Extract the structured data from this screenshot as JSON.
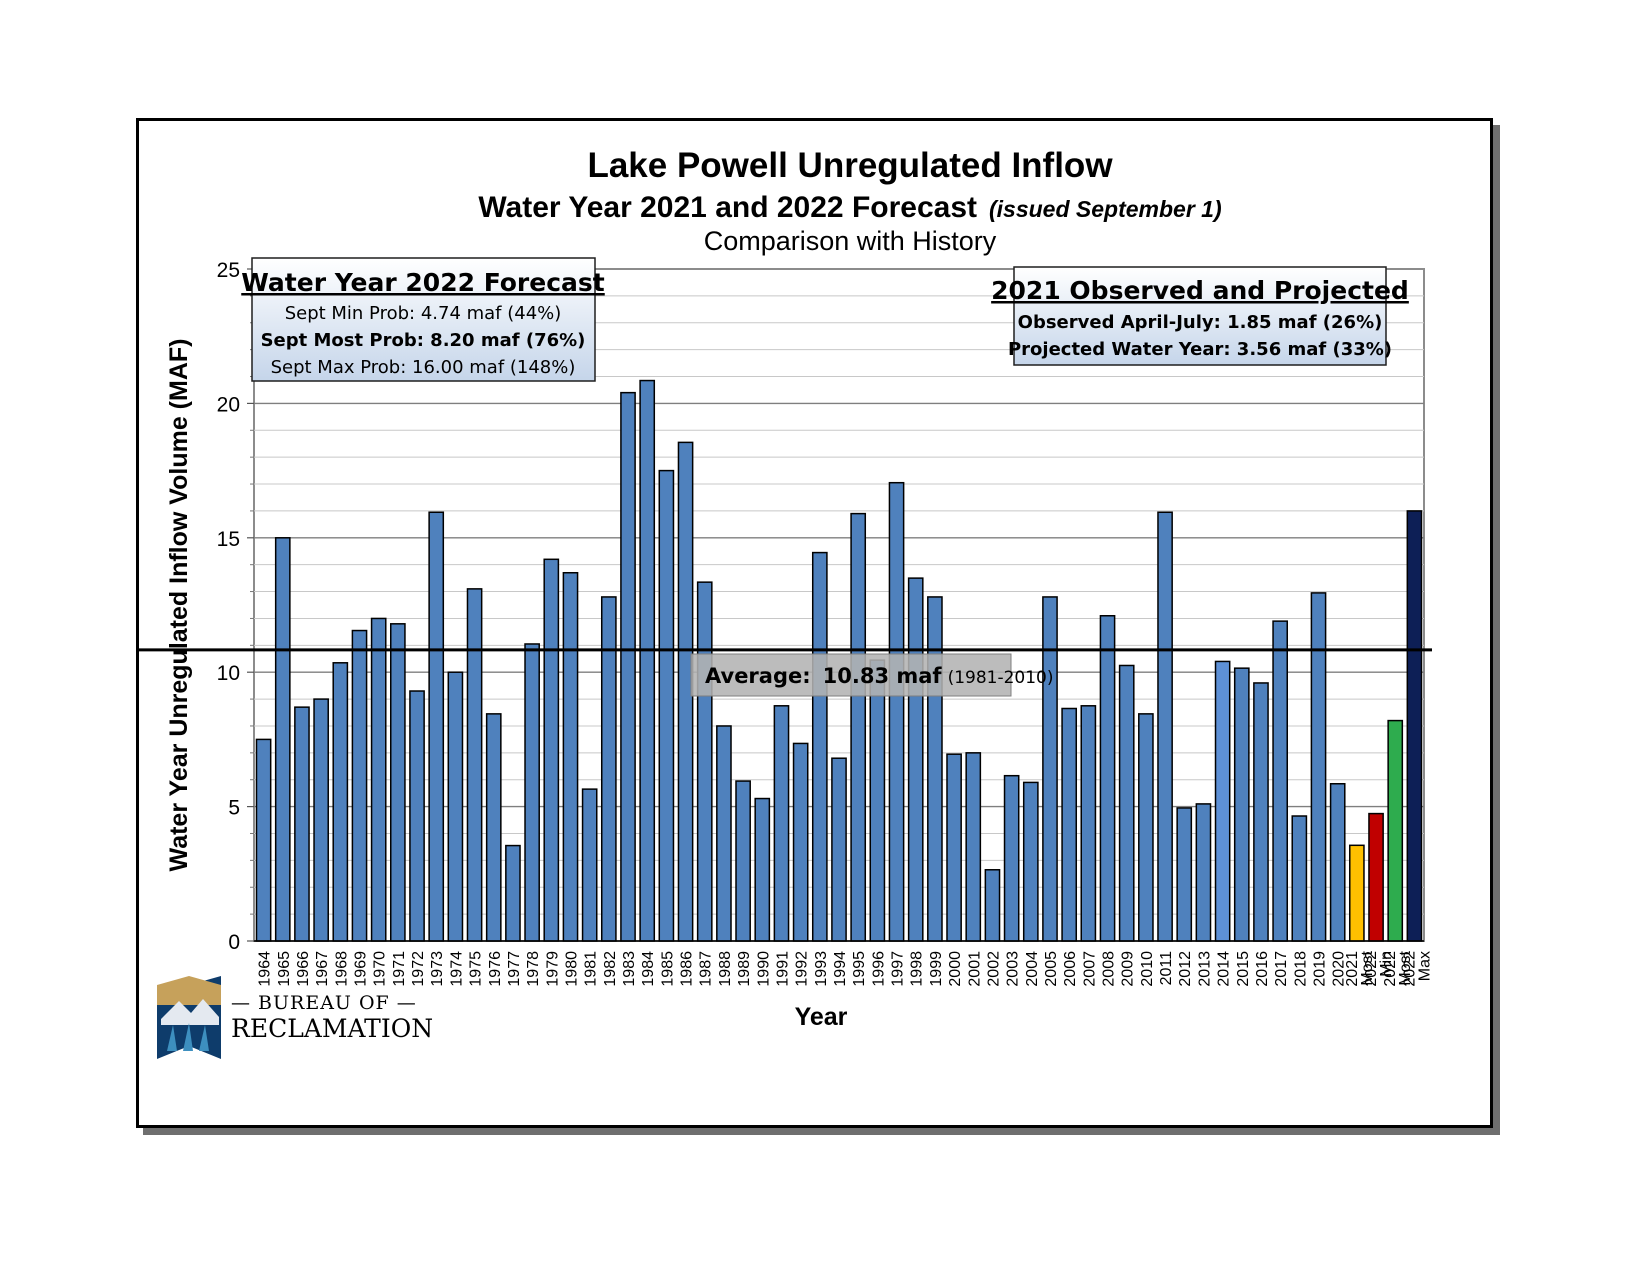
{
  "chart_data": {
    "type": "bar",
    "title": "Lake Powell Unregulated Inflow",
    "subtitle": "Water Year 2021 and 2022 Forecast",
    "subtitle_note": "(issued September 1)",
    "subtitle2": "Comparison with History",
    "xlabel": "Year",
    "ylabel": "Water Year Unregulated Inflow Volume (MAF)",
    "ylim": [
      0,
      25
    ],
    "yticks": [
      0,
      5,
      10,
      15,
      20,
      25
    ],
    "grid": true,
    "categories": [
      "1964",
      "1965",
      "1966",
      "1967",
      "1968",
      "1969",
      "1970",
      "1971",
      "1972",
      "1973",
      "1974",
      "1975",
      "1976",
      "1977",
      "1978",
      "1979",
      "1980",
      "1981",
      "1982",
      "1983",
      "1984",
      "1985",
      "1986",
      "1987",
      "1988",
      "1989",
      "1990",
      "1991",
      "1992",
      "1993",
      "1994",
      "1995",
      "1996",
      "1997",
      "1998",
      "1999",
      "2000",
      "2001",
      "2002",
      "2003",
      "2004",
      "2005",
      "2006",
      "2007",
      "2008",
      "2009",
      "2010",
      "2011",
      "2012",
      "2013",
      "2014",
      "2015",
      "2016",
      "2017",
      "2018",
      "2019",
      "2020",
      "Most 2021",
      "Min 2022",
      "Most 2022",
      "Max 2022"
    ],
    "values": [
      7.5,
      15.0,
      8.7,
      9.0,
      10.35,
      11.55,
      12.0,
      11.8,
      9.3,
      15.95,
      10.0,
      13.1,
      8.45,
      3.55,
      11.05,
      14.2,
      13.7,
      5.65,
      12.8,
      20.4,
      20.85,
      17.5,
      18.55,
      13.35,
      8.0,
      5.95,
      5.3,
      8.75,
      7.35,
      14.45,
      6.8,
      15.9,
      10.45,
      17.05,
      13.5,
      12.8,
      6.95,
      7.0,
      2.65,
      6.15,
      5.9,
      12.8,
      8.65,
      8.75,
      12.1,
      10.25,
      8.45,
      15.95,
      4.95,
      5.1,
      10.4,
      10.15,
      9.6,
      11.9,
      4.65,
      12.95,
      5.85,
      3.56,
      4.74,
      8.2,
      16.0
    ],
    "bar_colors": {
      "default": "#4f81bd",
      "2014": "#5d90d6",
      "Most 2021": "#ffc000",
      "Min 2022": "#c00000",
      "Most 2022": "#2eac4e",
      "Max 2022": "#0d1f56"
    },
    "average": {
      "value": 10.83,
      "label": "Average:",
      "value_label": "10.83 maf",
      "period": "(1981-2010)"
    },
    "forecast_box": {
      "heading": "Water Year 2022 Forecast",
      "lines": [
        "Sept Min Prob: 4.74 maf (44%)",
        "Sept Most Prob: 8.20 maf (76%)",
        "Sept Max Prob: 16.00 maf (148%)"
      ]
    },
    "observed_box": {
      "heading": "2021 Observed and Projected",
      "lines": [
        "Observed April-July: 1.85 maf (26%)",
        "Projected Water Year: 3.56 maf (33%)"
      ]
    }
  },
  "logo": {
    "line1": "BUREAU OF",
    "line2": "RECLAMATION"
  }
}
